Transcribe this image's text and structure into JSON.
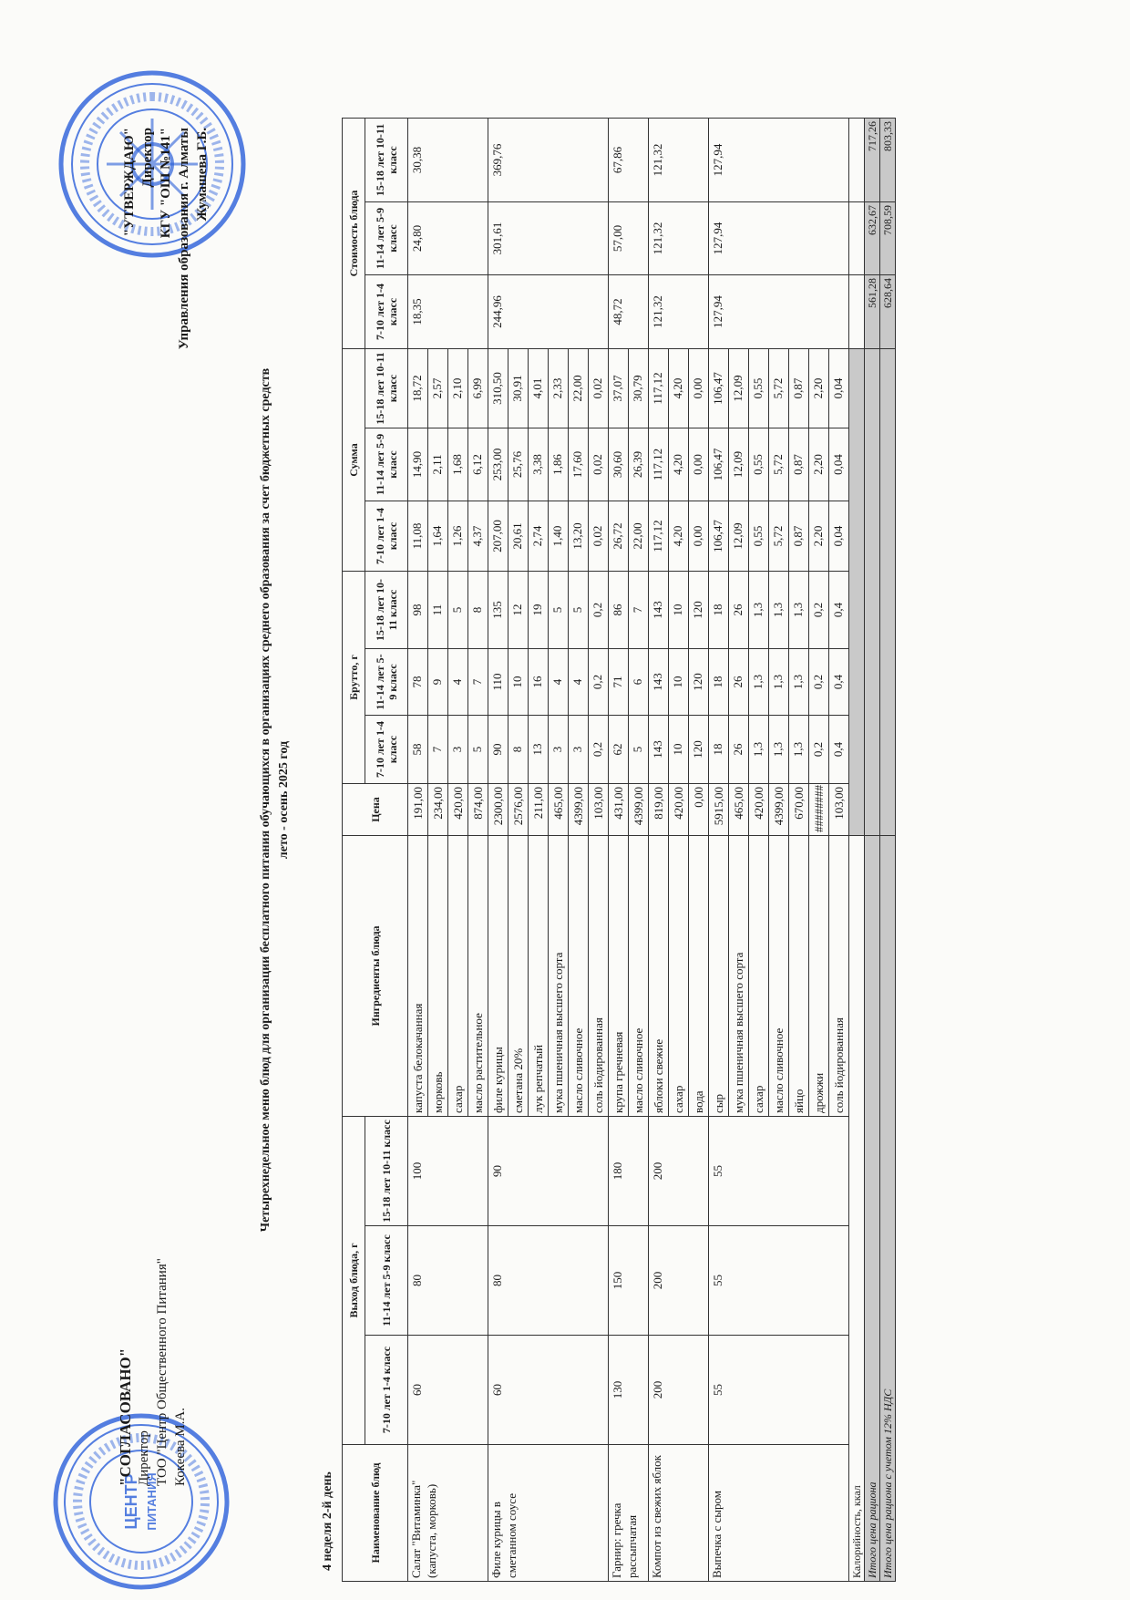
{
  "approval_left": {
    "title": "\"СОГЛАСОВАНО\"",
    "role": "Директор",
    "org": "ТОО \"Центр Общественного Питания\"",
    "person": "Кокеева М.А.",
    "stamp_text": "Қазақстан Республикасы Алматы қаласы Жауапкершілігі шектеулі серіктестігі · Товарищество с ограниченной ответственностью · Центр Общественного Питания · БСН/БИН"
  },
  "approval_right": {
    "title": "\"УТВЕРЖДАЮ\"",
    "role": "Директор",
    "org": "КГУ \"ОШ №141\"",
    "dept": "Управления образования г. Алматы",
    "person": "Жумашева Г.Б.",
    "stamp_text": "Алматы қаласы білім басқармасының «№ 141 жалпы білім беретін мектебі» коммуналдық мемлекеттік мекемесі БСН 040440003796 · Қазақстан Республикасы"
  },
  "title": {
    "line1": "Четырехнедельное меню блюд для организации бесплатного питания обучающихся в организациях среднего образования за счет бюджетных средств",
    "line2": "лето - осень 2025 год"
  },
  "week_day": "4 неделя 2-й день",
  "colors": {
    "stamp": "#2b5fd9",
    "shade": "#c9c9c9"
  },
  "headers": {
    "dish": "Наименование блюд",
    "output": "Выход блюда, г",
    "ingredients": "Ингредиенты блюда",
    "price": "Цена",
    "brutto": "Брутто, г",
    "sum": "Сумма",
    "cost": "Стоимость блюда",
    "groups": [
      "7-10 лет 1-4 класс",
      "11-14 лет 5-9 класс",
      "15-18 лет 10-11 класс"
    ]
  },
  "dishes": [
    {
      "name": "Салат \"Витаминка\" (капуста, морковь)",
      "output": [
        "60",
        "80",
        "100"
      ],
      "cost": [
        "18,35",
        "24,80",
        "30,38"
      ],
      "ingredients": [
        {
          "name": "капуста белокачанная",
          "price": "191,00",
          "brutto": [
            "58",
            "78",
            "98"
          ],
          "sum": [
            "11,08",
            "14,90",
            "18,72"
          ]
        },
        {
          "name": "морковь",
          "price": "234,00",
          "brutto": [
            "7",
            "9",
            "11"
          ],
          "sum": [
            "1,64",
            "2,11",
            "2,57"
          ]
        },
        {
          "name": "сахар",
          "price": "420,00",
          "brutto": [
            "3",
            "4",
            "5"
          ],
          "sum": [
            "1,26",
            "1,68",
            "2,10"
          ]
        },
        {
          "name": "масло растительное",
          "price": "874,00",
          "brutto": [
            "5",
            "7",
            "8"
          ],
          "sum": [
            "4,37",
            "6,12",
            "6,99"
          ]
        }
      ]
    },
    {
      "name": "Филе курицы в сметанном соусе",
      "output": [
        "60",
        "80",
        "90"
      ],
      "cost": [
        "244,96",
        "301,61",
        "369,76"
      ],
      "ingredients": [
        {
          "name": "филе курицы",
          "price": "2300,00",
          "brutto": [
            "90",
            "110",
            "135"
          ],
          "sum": [
            "207,00",
            "253,00",
            "310,50"
          ]
        },
        {
          "name": "сметана 20%",
          "price": "2576,00",
          "brutto": [
            "8",
            "10",
            "12"
          ],
          "sum": [
            "20,61",
            "25,76",
            "30,91"
          ]
        },
        {
          "name": "лук репчатый",
          "price": "211,00",
          "brutto": [
            "13",
            "16",
            "19"
          ],
          "sum": [
            "2,74",
            "3,38",
            "4,01"
          ]
        },
        {
          "name": "мука пшеничная высшего сорта",
          "price": "465,00",
          "brutto": [
            "3",
            "4",
            "5"
          ],
          "sum": [
            "1,40",
            "1,86",
            "2,33"
          ]
        },
        {
          "name": "масло сливочное",
          "price": "4399,00",
          "brutto": [
            "3",
            "4",
            "5"
          ],
          "sum": [
            "13,20",
            "17,60",
            "22,00"
          ]
        },
        {
          "name": "соль йодированная",
          "price": "103,00",
          "brutto": [
            "0,2",
            "0,2",
            "0,2"
          ],
          "sum": [
            "0,02",
            "0,02",
            "0,02"
          ]
        }
      ]
    },
    {
      "name": "Гарнир: гречка рассыпчатая",
      "output": [
        "130",
        "150",
        "180"
      ],
      "cost": [
        "48,72",
        "57,00",
        "67,86"
      ],
      "ingredients": [
        {
          "name": "крупа гречневая",
          "price": "431,00",
          "brutto": [
            "62",
            "71",
            "86"
          ],
          "sum": [
            "26,72",
            "30,60",
            "37,07"
          ]
        },
        {
          "name": "масло сливочное",
          "price": "4399,00",
          "brutto": [
            "5",
            "6",
            "7"
          ],
          "sum": [
            "22,00",
            "26,39",
            "30,79"
          ]
        }
      ]
    },
    {
      "name": "Компот из свежих яблок",
      "output": [
        "200",
        "200",
        "200"
      ],
      "cost": [
        "121,32",
        "121,32",
        "121,32"
      ],
      "ingredients": [
        {
          "name": "яблоки свежие",
          "price": "819,00",
          "brutto": [
            "143",
            "143",
            "143"
          ],
          "sum": [
            "117,12",
            "117,12",
            "117,12"
          ]
        },
        {
          "name": "сахар",
          "price": "420,00",
          "brutto": [
            "10",
            "10",
            "10"
          ],
          "sum": [
            "4,20",
            "4,20",
            "4,20"
          ]
        },
        {
          "name": "вода",
          "price": "0,00",
          "brutto": [
            "120",
            "120",
            "120"
          ],
          "sum": [
            "0,00",
            "0,00",
            "0,00"
          ]
        }
      ]
    },
    {
      "name": "Выпечка с сыром",
      "output": [
        "55",
        "55",
        "55"
      ],
      "cost": [
        "127,94",
        "127,94",
        "127,94"
      ],
      "ingredients": [
        {
          "name": "сыр",
          "price": "5915,00",
          "brutto": [
            "18",
            "18",
            "18"
          ],
          "sum": [
            "106,47",
            "106,47",
            "106,47"
          ]
        },
        {
          "name": "мука пшеничная высшего сорта",
          "price": "465,00",
          "brutto": [
            "26",
            "26",
            "26"
          ],
          "sum": [
            "12,09",
            "12,09",
            "12,09"
          ]
        },
        {
          "name": "сахар",
          "price": "420,00",
          "brutto": [
            "1,3",
            "1,3",
            "1,3"
          ],
          "sum": [
            "0,55",
            "0,55",
            "0,55"
          ]
        },
        {
          "name": "масло сливочное",
          "price": "4399,00",
          "brutto": [
            "1,3",
            "1,3",
            "1,3"
          ],
          "sum": [
            "5,72",
            "5,72",
            "5,72"
          ]
        },
        {
          "name": "яйцо",
          "price": "670,00",
          "brutto": [
            "1,3",
            "1,3",
            "1,3"
          ],
          "sum": [
            "0,87",
            "0,87",
            "0,87"
          ]
        },
        {
          "name": "дрожжи",
          "price": "########",
          "brutto": [
            "0,2",
            "0,2",
            "0,2"
          ],
          "sum": [
            "2,20",
            "2,20",
            "2,20"
          ]
        },
        {
          "name": "соль йодированная",
          "price": "103,00",
          "brutto": [
            "0,4",
            "0,4",
            "0,4"
          ],
          "sum": [
            "0,04",
            "0,04",
            "0,04"
          ]
        }
      ]
    }
  ],
  "totals": [
    {
      "label": "Калорийность, ккал",
      "values": [
        "",
        "",
        ""
      ],
      "italic": false
    },
    {
      "label": "Итого цена рациона",
      "values": [
        "561,28",
        "632,67",
        "717,26"
      ],
      "italic": true
    },
    {
      "label": "Итого цена рациона с учетом 12% НДС",
      "values": [
        "628,64",
        "708,59",
        "803,33"
      ],
      "italic": true
    }
  ]
}
